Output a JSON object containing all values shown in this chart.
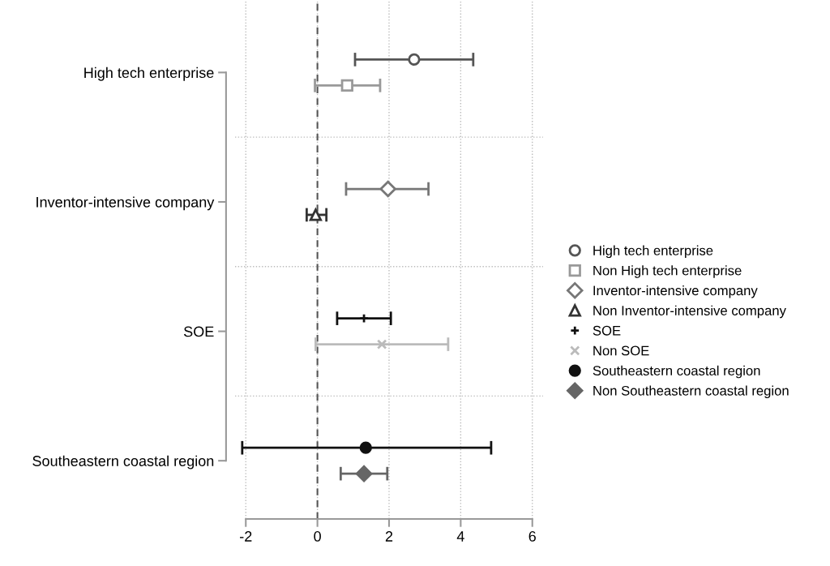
{
  "chart_data": {
    "type": "scatter",
    "orientation": "horizontal",
    "categories": [
      "High tech enterprise",
      "Inventor-intensive company",
      "SOE",
      "Southeastern coastal region"
    ],
    "series": [
      {
        "name": "High tech enterprise",
        "color": "#555555",
        "marker": "circle",
        "values": [
          2.7,
          null,
          null,
          null
        ],
        "errors": [
          [
            1.05,
            4.35
          ],
          null,
          null,
          null
        ]
      },
      {
        "name": "Non High tech enterprise",
        "color": "#999999",
        "marker": "square",
        "values": [
          0.83,
          null,
          null,
          null
        ],
        "errors": [
          [
            -0.07,
            1.75
          ],
          null,
          null,
          null
        ]
      },
      {
        "name": "Inventor-intensive company",
        "color": "#777777",
        "marker": "diamond",
        "values": [
          null,
          1.97,
          null,
          null
        ],
        "errors": [
          null,
          [
            0.8,
            3.1
          ],
          null,
          null
        ]
      },
      {
        "name": "Non Inventor-intensive company",
        "color": "#333333",
        "marker": "triangle",
        "values": [
          null,
          -0.05,
          null,
          null
        ],
        "errors": [
          null,
          [
            -0.3,
            0.25
          ],
          null,
          null
        ]
      },
      {
        "name": "SOE",
        "color": "#111111",
        "marker": "cross",
        "values": [
          null,
          null,
          1.3,
          null
        ],
        "errors": [
          null,
          null,
          [
            0.55,
            2.05
          ],
          null
        ]
      },
      {
        "name": "Non SOE",
        "color": "#bbbbbb",
        "marker": "cross",
        "values": [
          null,
          null,
          1.8,
          null
        ],
        "errors": [
          null,
          null,
          [
            -0.05,
            3.65
          ],
          null
        ]
      },
      {
        "name": "Southeastern coastal region",
        "color": "#111111",
        "marker": "circle",
        "values": [
          null,
          null,
          null,
          1.35
        ],
        "errors": [
          null,
          null,
          null,
          [
            -2.1,
            4.85
          ]
        ]
      },
      {
        "name": "Non Southeastern coastal region",
        "color": "#666666",
        "marker": "diamond",
        "values": [
          null,
          null,
          null,
          1.3
        ],
        "errors": [
          null,
          null,
          null,
          [
            0.65,
            1.95
          ]
        ]
      }
    ],
    "xlim": [
      -2.3,
      6.3
    ],
    "xticks": [
      -2,
      0,
      2,
      4,
      6
    ],
    "ref_lines": [
      {
        "axis": "x",
        "value": 0,
        "line_style": "dashed",
        "color": "#555555"
      }
    ],
    "grid": true,
    "legend": "right"
  }
}
